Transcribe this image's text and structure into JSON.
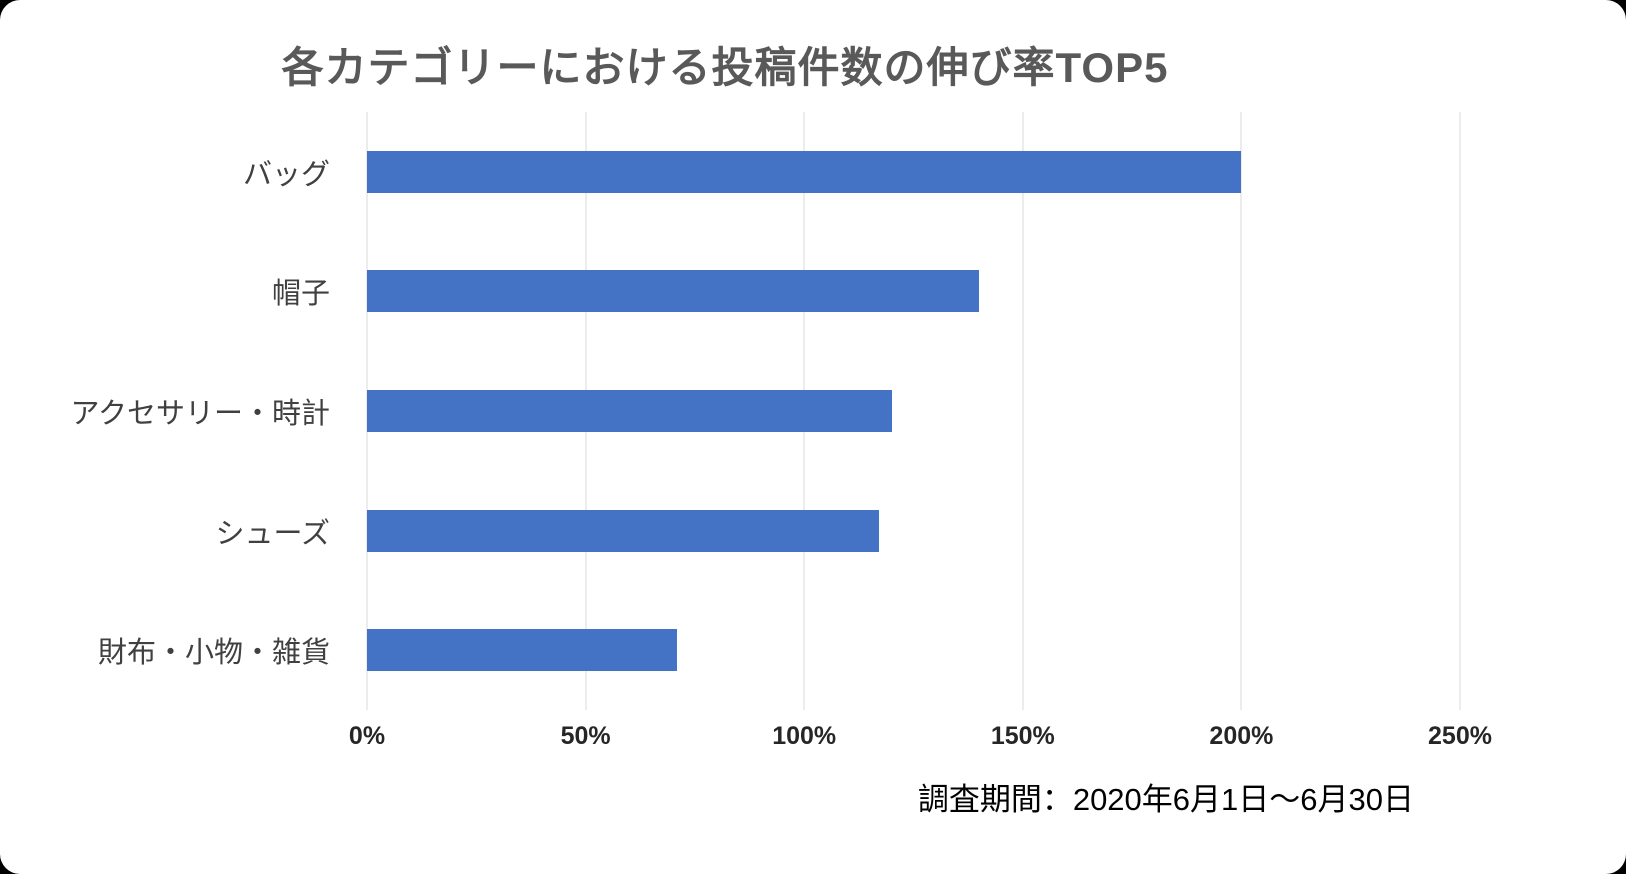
{
  "chart": {
    "title": "各カテゴリーにおける投稿件数の伸び率TOP5",
    "footnote": "調査期間：2020年6月1日～6月30日"
  },
  "chart_data": {
    "type": "bar",
    "orientation": "horizontal",
    "title": "各カテゴリーにおける投稿件数の伸び率TOP5",
    "categories": [
      "バッグ",
      "帽子",
      "アクセサリー・時計",
      "シューズ",
      "財布・小物・雑貨"
    ],
    "values": [
      200,
      140,
      120,
      117,
      71
    ],
    "unit": "%",
    "xlabel": "",
    "ylabel": "",
    "xlim": [
      0,
      250
    ],
    "x_ticks": [
      "0%",
      "50%",
      "100%",
      "150%",
      "200%",
      "250%"
    ],
    "x_tick_values": [
      0,
      50,
      100,
      150,
      200,
      250
    ],
    "grid": true,
    "legend": "none",
    "bar_color": "#4472C4",
    "gridline_color": "#d9d9d9",
    "title_color": "#595959",
    "footnote": "調査期間：2020年6月1日～6月30日"
  }
}
